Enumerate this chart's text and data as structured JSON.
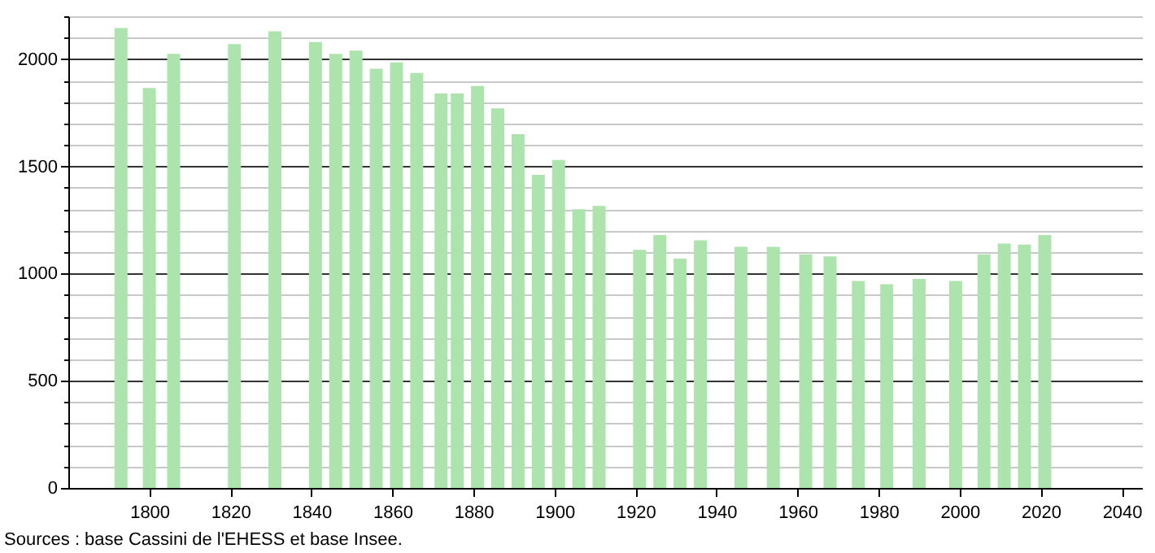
{
  "chart_data": {
    "type": "bar",
    "x": [
      1793,
      1800,
      1806,
      1821,
      1831,
      1841,
      1846,
      1851,
      1856,
      1861,
      1866,
      1872,
      1876,
      1881,
      1886,
      1891,
      1896,
      1901,
      1906,
      1911,
      1921,
      1926,
      1931,
      1936,
      1946,
      1954,
      1962,
      1968,
      1975,
      1982,
      1990,
      1999,
      2006,
      2011,
      2016,
      2021
    ],
    "values": [
      2145,
      1865,
      2025,
      2070,
      2130,
      2080,
      2025,
      2040,
      1955,
      1985,
      1935,
      1840,
      1840,
      1875,
      1770,
      1650,
      1460,
      1530,
      1300,
      1315,
      1110,
      1180,
      1070,
      1155,
      1125,
      1125,
      1090,
      1080,
      965,
      950,
      975,
      965,
      1090,
      1140,
      1135,
      1180
    ],
    "color": "#ade3ad",
    "xlim": [
      1780,
      2045
    ],
    "xticks": [
      1800,
      1820,
      1840,
      1860,
      1880,
      1900,
      1920,
      1940,
      1960,
      1980,
      2000,
      2020,
      2040
    ],
    "ylim": [
      0,
      2200
    ],
    "yticks": [
      0,
      {
        "value": 100,
        "label": null
      },
      {
        "value": 200,
        "label": null
      },
      {
        "value": 300,
        "label": null
      },
      {
        "value": 400,
        "label": null
      },
      500,
      {
        "value": 600,
        "label": null
      },
      {
        "value": 700,
        "label": null
      },
      {
        "value": 800,
        "label": null
      },
      {
        "value": 900,
        "label": null
      },
      1000,
      {
        "value": 1100,
        "label": null
      },
      {
        "value": 1200,
        "label": null
      },
      {
        "value": 1300,
        "label": null
      },
      {
        "value": 1400,
        "label": null
      },
      1500,
      {
        "value": 1600,
        "label": null
      },
      {
        "value": 1700,
        "label": null
      },
      {
        "value": 1800,
        "label": null
      },
      {
        "value": 1900,
        "label": null
      },
      2000,
      {
        "value": 2100,
        "label": null
      },
      {
        "value": 2200,
        "label": null
      }
    ],
    "grid": "y",
    "annotations": [
      "Sources : base Cassini de l'EHESS et base Insee."
    ]
  }
}
